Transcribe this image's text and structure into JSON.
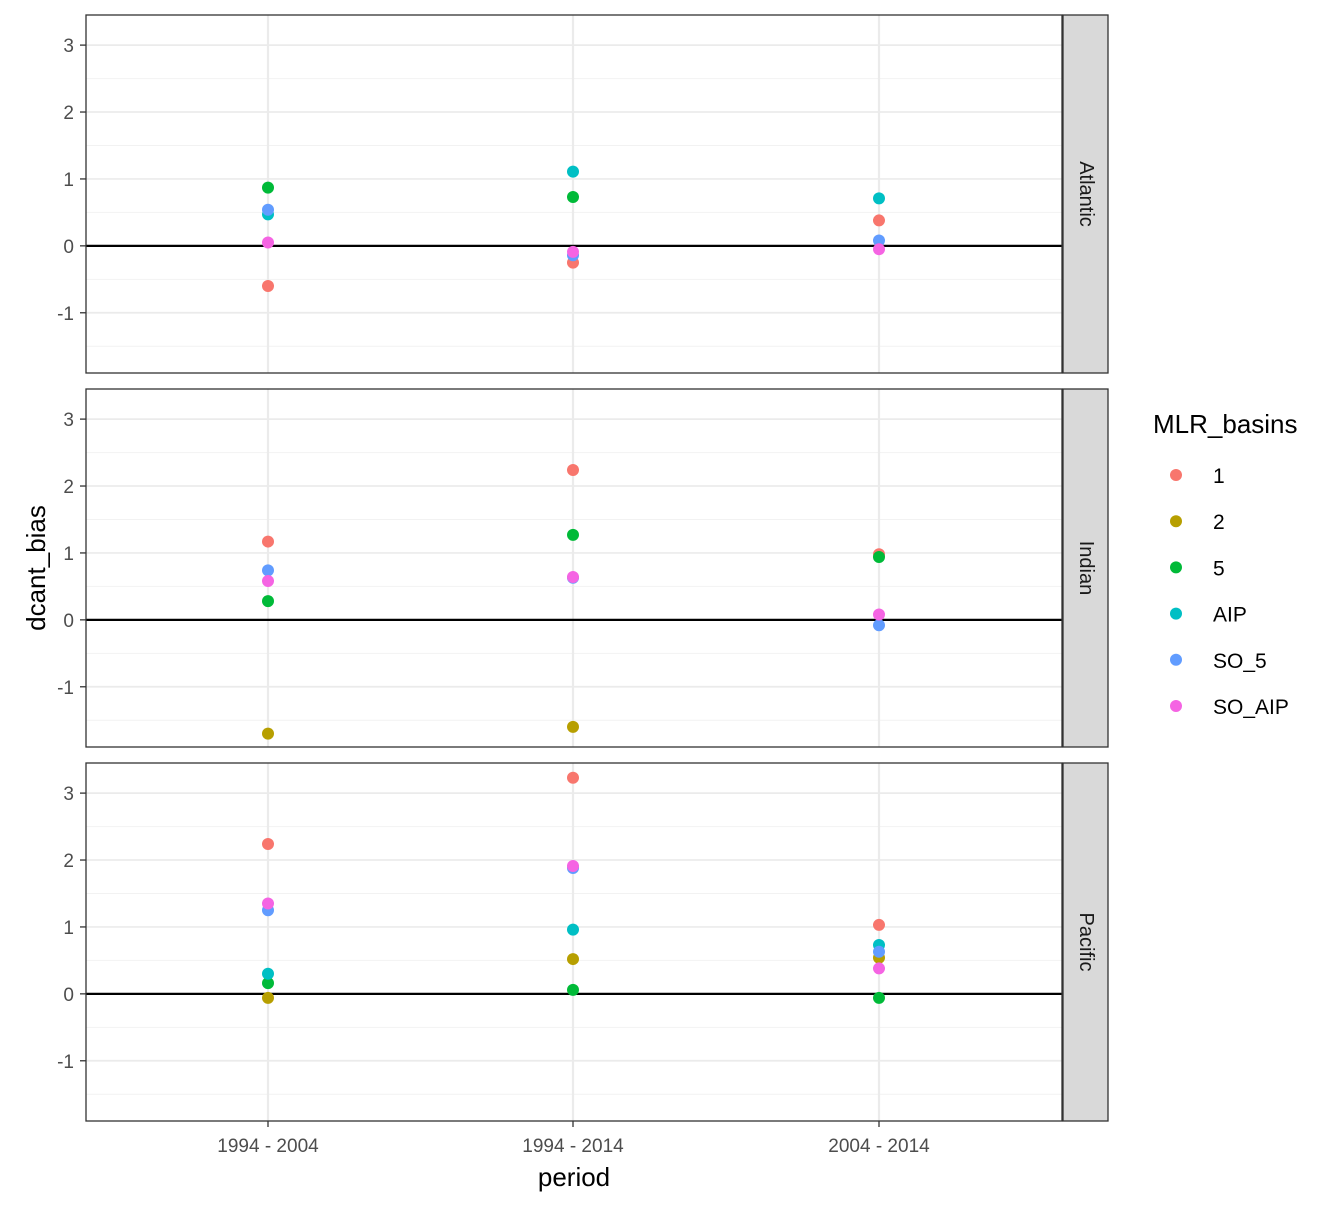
{
  "chart_data": {
    "type": "scatter",
    "xlabel": "period",
    "ylabel": "dcant_bias",
    "categories": [
      "1994 - 2004",
      "1994 - 2014",
      "2004 - 2014"
    ],
    "ylim": [
      -1.9,
      3.45
    ],
    "y_ticks": [
      "3",
      "2",
      "1",
      "0",
      "-1"
    ],
    "reference_line_y": 0,
    "grid": true,
    "legend": {
      "title": "MLR_basins",
      "placement": "right",
      "entries": [
        {
          "label": "1",
          "color": "#F8766D"
        },
        {
          "label": "2",
          "color": "#B79F00"
        },
        {
          "label": "5",
          "color": "#00BA38"
        },
        {
          "label": "AIP",
          "color": "#00BFC4"
        },
        {
          "label": "SO_5",
          "color": "#619CFF"
        },
        {
          "label": "SO_AIP",
          "color": "#F564E3"
        }
      ]
    },
    "panels": [
      {
        "name": "Atlantic",
        "series": [
          {
            "name": "1",
            "values": [
              -0.6,
              -0.25,
              0.38
            ]
          },
          {
            "name": "2",
            "values": [
              null,
              null,
              null
            ]
          },
          {
            "name": "5",
            "values": [
              0.87,
              0.73,
              null
            ]
          },
          {
            "name": "AIP",
            "values": [
              0.47,
              1.11,
              0.71
            ]
          },
          {
            "name": "SO_5",
            "values": [
              0.54,
              -0.14,
              0.08
            ]
          },
          {
            "name": "SO_AIP",
            "values": [
              0.05,
              -0.09,
              -0.05
            ]
          }
        ]
      },
      {
        "name": "Indian",
        "series": [
          {
            "name": "1",
            "values": [
              1.17,
              2.24,
              0.98
            ]
          },
          {
            "name": "2",
            "values": [
              -1.7,
              -1.6,
              null
            ]
          },
          {
            "name": "5",
            "values": [
              0.28,
              1.27,
              0.94
            ]
          },
          {
            "name": "AIP",
            "values": [
              null,
              null,
              null
            ]
          },
          {
            "name": "SO_5",
            "values": [
              0.74,
              0.63,
              -0.08
            ]
          },
          {
            "name": "SO_AIP",
            "values": [
              0.58,
              0.64,
              0.08
            ]
          }
        ]
      },
      {
        "name": "Pacific",
        "series": [
          {
            "name": "1",
            "values": [
              2.24,
              3.23,
              1.03
            ]
          },
          {
            "name": "2",
            "values": [
              -0.06,
              0.52,
              0.54
            ]
          },
          {
            "name": "5",
            "values": [
              0.16,
              0.06,
              -0.06
            ]
          },
          {
            "name": "AIP",
            "values": [
              0.3,
              0.96,
              0.73
            ]
          },
          {
            "name": "SO_5",
            "values": [
              1.25,
              1.88,
              0.63
            ]
          },
          {
            "name": "SO_AIP",
            "values": [
              1.35,
              1.91,
              0.38
            ]
          }
        ]
      }
    ]
  }
}
